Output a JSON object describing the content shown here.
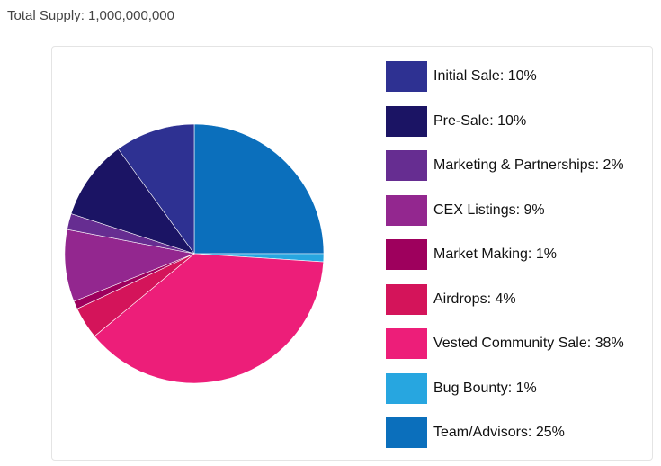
{
  "header": {
    "total_supply": "Total Supply: 1,000,000,000"
  },
  "chart_data": {
    "type": "pie",
    "title": "",
    "slices": [
      {
        "label": "Team/Advisors",
        "value": 25,
        "color": "#0b6fbc",
        "legend": "Team/Advisors: 25%"
      },
      {
        "label": "Bug Bounty",
        "value": 1,
        "color": "#27a6e0",
        "legend": "Bug Bounty: 1%"
      },
      {
        "label": "Vested Community Sale",
        "value": 38,
        "color": "#ed1e79",
        "legend": "Vested Community Sale: 38%"
      },
      {
        "label": "Airdrops",
        "value": 4,
        "color": "#d4145a",
        "legend": "Airdrops: 4%"
      },
      {
        "label": "Market Making",
        "value": 1,
        "color": "#9e005d",
        "legend": "Market Making: 1%"
      },
      {
        "label": "CEX Listings",
        "value": 9,
        "color": "#93278f",
        "legend": "CEX Listings: 9%"
      },
      {
        "label": "Marketing & Partnerships",
        "value": 2,
        "color": "#662d91",
        "legend": "Marketing & Partnerships: 2%"
      },
      {
        "label": "Pre-Sale",
        "value": 10,
        "color": "#1b1464",
        "legend": "Pre-Sale: 10%"
      },
      {
        "label": "Initial Sale",
        "value": 10,
        "color": "#2e3192",
        "legend": "Initial Sale: 10%"
      }
    ],
    "legend_order": [
      "Initial Sale",
      "Pre-Sale",
      "Marketing & Partnerships",
      "CEX Listings",
      "Market Making",
      "Airdrops",
      "Vested Community Sale",
      "Bug Bounty",
      "Team/Advisors"
    ],
    "legend_position": "right",
    "start": "top",
    "direction": "clockwise"
  }
}
